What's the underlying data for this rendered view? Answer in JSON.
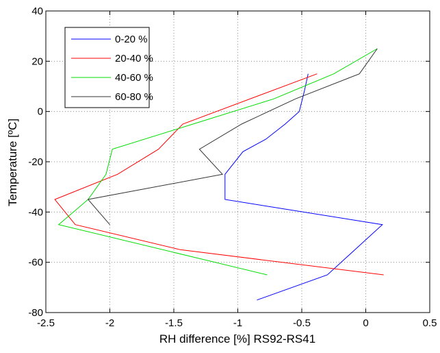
{
  "chart_data": {
    "type": "line",
    "xlabel": "RH difference [%] RS92-RS41",
    "ylabel": "Temperature [ºC]",
    "xlim": [
      -2.5,
      0.5
    ],
    "ylim": [
      -80,
      40
    ],
    "xticks": [
      -2.5,
      -2,
      -1.5,
      -1,
      -0.5,
      0,
      0.5
    ],
    "yticks": [
      -80,
      -60,
      -40,
      -20,
      0,
      20,
      40
    ],
    "xtick_labels": [
      "-2.5",
      "-2",
      "-1.5",
      "-1",
      "-0.5",
      "0",
      "0.5"
    ],
    "ytick_labels": [
      "-80",
      "-60",
      "-40",
      "-20",
      "0",
      "20",
      "40"
    ],
    "grid": true,
    "legend_position": "top-left",
    "series": [
      {
        "name": "0-20 %",
        "color": "#0000ff",
        "points": [
          [
            -0.45,
            15
          ],
          [
            -0.48,
            8
          ],
          [
            -0.52,
            0
          ],
          [
            -0.63,
            -5
          ],
          [
            -0.78,
            -11
          ],
          [
            -0.96,
            -16
          ],
          [
            -1.1,
            -25
          ],
          [
            -1.1,
            -35
          ],
          [
            0.13,
            -45
          ],
          [
            -0.3,
            -65
          ],
          [
            -0.85,
            -75
          ]
        ]
      },
      {
        "name": "20-40 %",
        "color": "#ff0000",
        "points": [
          [
            -0.38,
            15
          ],
          [
            -1.43,
            -5
          ],
          [
            -1.62,
            -15
          ],
          [
            -1.94,
            -25
          ],
          [
            -2.43,
            -35
          ],
          [
            -2.27,
            -45
          ],
          [
            -1.45,
            -55
          ],
          [
            0.14,
            -65
          ]
        ]
      },
      {
        "name": "40-60 %",
        "color": "#00dd00",
        "points": [
          [
            0.09,
            25
          ],
          [
            -0.25,
            15
          ],
          [
            -0.72,
            5
          ],
          [
            -1.35,
            -5
          ],
          [
            -1.98,
            -15
          ],
          [
            -2.03,
            -25
          ],
          [
            -2.17,
            -35
          ],
          [
            -2.4,
            -45
          ],
          [
            -0.77,
            -65
          ]
        ]
      },
      {
        "name": "60-80 %",
        "color": "#333333",
        "points": [
          [
            0.09,
            25
          ],
          [
            -0.05,
            15
          ],
          [
            -0.55,
            5
          ],
          [
            -0.97,
            -5
          ],
          [
            -1.3,
            -15
          ],
          [
            -1.12,
            -25
          ],
          [
            -2.17,
            -35
          ],
          [
            -2,
            -45
          ]
        ]
      }
    ]
  }
}
